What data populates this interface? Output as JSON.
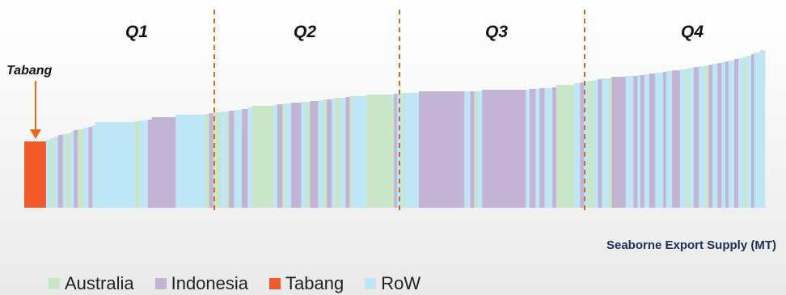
{
  "chart_data": {
    "type": "bar",
    "xlabel": "Seaborne Export Supply (MT)",
    "ylabel": "",
    "quartiles": [
      "Q1",
      "Q2",
      "Q3",
      "Q4"
    ],
    "callout": "Tabang",
    "legend": [
      {
        "name": "Australia",
        "color": "#c9e6c9"
      },
      {
        "name": "Indonesia",
        "color": "#c3b4d6"
      },
      {
        "name": "Tabang",
        "color": "#f05a28"
      },
      {
        "name": "RoW",
        "color": "#bfe6f7"
      }
    ],
    "ylim": [
      0,
      200
    ],
    "bars": [
      {
        "c": "Tabang",
        "w": 22,
        "v": 82
      },
      {
        "c": "RoW",
        "w": 4,
        "v": 84
      },
      {
        "c": "Australia",
        "w": 4,
        "v": 86
      },
      {
        "c": "RoW",
        "w": 4,
        "v": 88
      },
      {
        "c": "Indonesia",
        "w": 5,
        "v": 90
      },
      {
        "c": "RoW",
        "w": 3,
        "v": 91
      },
      {
        "c": "Australia",
        "w": 5,
        "v": 92
      },
      {
        "c": "RoW",
        "w": 3,
        "v": 94
      },
      {
        "c": "Indonesia",
        "w": 4,
        "v": 96
      },
      {
        "c": "Australia",
        "w": 6,
        "v": 97
      },
      {
        "c": "RoW",
        "w": 5,
        "v": 99
      },
      {
        "c": "Indonesia",
        "w": 4,
        "v": 100
      },
      {
        "c": "RoW",
        "w": 3,
        "v": 102
      },
      {
        "c": "RoW",
        "w": 40,
        "v": 106
      },
      {
        "c": "Australia",
        "w": 5,
        "v": 107
      },
      {
        "c": "RoW",
        "w": 8,
        "v": 108
      },
      {
        "c": "Indonesia",
        "w": 4,
        "v": 109
      },
      {
        "c": "Indonesia",
        "w": 24,
        "v": 112
      },
      {
        "c": "RoW",
        "w": 30,
        "v": 115
      },
      {
        "c": "Australia",
        "w": 4,
        "v": 116
      },
      {
        "c": "Indonesia",
        "w": 4,
        "v": 117
      },
      {
        "c": "Australia",
        "w": 8,
        "v": 118
      },
      {
        "c": "RoW",
        "w": 5,
        "v": 119
      },
      {
        "c": "Australia",
        "w": 3,
        "v": 119
      },
      {
        "c": "Indonesia",
        "w": 5,
        "v": 120
      },
      {
        "c": "RoW",
        "w": 8,
        "v": 121
      },
      {
        "c": "Indonesia",
        "w": 6,
        "v": 122
      },
      {
        "c": "RoW",
        "w": 4,
        "v": 124
      },
      {
        "c": "Australia",
        "w": 22,
        "v": 126
      },
      {
        "c": "RoW",
        "w": 4,
        "v": 127
      },
      {
        "c": "Indonesia",
        "w": 5,
        "v": 128
      },
      {
        "c": "Australia",
        "w": 3,
        "v": 128
      },
      {
        "c": "RoW",
        "w": 6,
        "v": 129
      },
      {
        "c": "Indonesia",
        "w": 10,
        "v": 130
      },
      {
        "c": "RoW",
        "w": 5,
        "v": 131
      },
      {
        "c": "Australia",
        "w": 4,
        "v": 131
      },
      {
        "c": "Indonesia",
        "w": 8,
        "v": 132
      },
      {
        "c": "RoW",
        "w": 5,
        "v": 133
      },
      {
        "c": "Australia",
        "w": 4,
        "v": 134
      },
      {
        "c": "Indonesia",
        "w": 5,
        "v": 134
      },
      {
        "c": "RoW",
        "w": 3,
        "v": 135
      },
      {
        "c": "Australia",
        "w": 6,
        "v": 136
      },
      {
        "c": "RoW",
        "w": 5,
        "v": 136
      },
      {
        "c": "Indonesia",
        "w": 4,
        "v": 137
      },
      {
        "c": "Australia",
        "w": 3,
        "v": 138
      },
      {
        "c": "RoW",
        "w": 14,
        "v": 138
      },
      {
        "c": "Australia",
        "w": 28,
        "v": 140
      },
      {
        "c": "Indonesia",
        "w": 3,
        "v": 141
      },
      {
        "c": "RoW",
        "w": 5,
        "v": 141
      },
      {
        "c": "Australia",
        "w": 3,
        "v": 142
      },
      {
        "c": "RoW",
        "w": 14,
        "v": 142
      },
      {
        "c": "Indonesia",
        "w": 46,
        "v": 144
      },
      {
        "c": "RoW",
        "w": 6,
        "v": 144
      },
      {
        "c": "Indonesia",
        "w": 4,
        "v": 144
      },
      {
        "c": "Australia",
        "w": 3,
        "v": 144
      },
      {
        "c": "RoW",
        "w": 5,
        "v": 144
      },
      {
        "c": "Indonesia",
        "w": 44,
        "v": 146
      },
      {
        "c": "RoW",
        "w": 4,
        "v": 146
      },
      {
        "c": "Indonesia",
        "w": 6,
        "v": 147
      },
      {
        "c": "RoW",
        "w": 4,
        "v": 147
      },
      {
        "c": "Indonesia",
        "w": 5,
        "v": 148
      },
      {
        "c": "RoW",
        "w": 8,
        "v": 148
      },
      {
        "c": "Indonesia",
        "w": 4,
        "v": 149
      },
      {
        "c": "Australia",
        "w": 18,
        "v": 152
      },
      {
        "c": "RoW",
        "w": 6,
        "v": 154
      },
      {
        "c": "Indonesia",
        "w": 4,
        "v": 155
      },
      {
        "c": "RoW",
        "w": 4,
        "v": 156
      },
      {
        "c": "Australia",
        "w": 6,
        "v": 157
      },
      {
        "c": "RoW",
        "w": 4,
        "v": 158
      },
      {
        "c": "Indonesia",
        "w": 4,
        "v": 159
      },
      {
        "c": "RoW",
        "w": 7,
        "v": 160
      },
      {
        "c": "Australia",
        "w": 3,
        "v": 160
      },
      {
        "c": "Indonesia",
        "w": 14,
        "v": 162
      },
      {
        "c": "RoW",
        "w": 8,
        "v": 163
      },
      {
        "c": "Indonesia",
        "w": 4,
        "v": 163
      },
      {
        "c": "RoW",
        "w": 3,
        "v": 164
      },
      {
        "c": "Indonesia",
        "w": 4,
        "v": 164
      },
      {
        "c": "RoW",
        "w": 5,
        "v": 165
      },
      {
        "c": "Indonesia",
        "w": 6,
        "v": 166
      },
      {
        "c": "RoW",
        "w": 8,
        "v": 167
      },
      {
        "c": "Indonesia",
        "w": 3,
        "v": 168
      },
      {
        "c": "RoW",
        "w": 6,
        "v": 169
      },
      {
        "c": "Indonesia",
        "w": 8,
        "v": 170
      },
      {
        "c": "RoW",
        "w": 6,
        "v": 171
      },
      {
        "c": "Australia",
        "w": 3,
        "v": 172
      },
      {
        "c": "RoW",
        "w": 5,
        "v": 173
      },
      {
        "c": "Indonesia",
        "w": 5,
        "v": 174
      },
      {
        "c": "RoW",
        "w": 6,
        "v": 175
      },
      {
        "c": "Australia",
        "w": 4,
        "v": 176
      },
      {
        "c": "Indonesia",
        "w": 4,
        "v": 177
      },
      {
        "c": "RoW",
        "w": 5,
        "v": 178
      },
      {
        "c": "Indonesia",
        "w": 4,
        "v": 179
      },
      {
        "c": "RoW",
        "w": 4,
        "v": 180
      },
      {
        "c": "Indonesia",
        "w": 3,
        "v": 181
      },
      {
        "c": "RoW",
        "w": 6,
        "v": 182
      },
      {
        "c": "Indonesia",
        "w": 4,
        "v": 184
      },
      {
        "c": "RoW",
        "w": 5,
        "v": 185
      },
      {
        "c": "Australia",
        "w": 3,
        "v": 186
      },
      {
        "c": "RoW",
        "w": 5,
        "v": 188
      },
      {
        "c": "Indonesia",
        "w": 3,
        "v": 190
      },
      {
        "c": "RoW",
        "w": 6,
        "v": 192
      },
      {
        "c": "RoW",
        "w": 5,
        "v": 195
      }
    ]
  }
}
